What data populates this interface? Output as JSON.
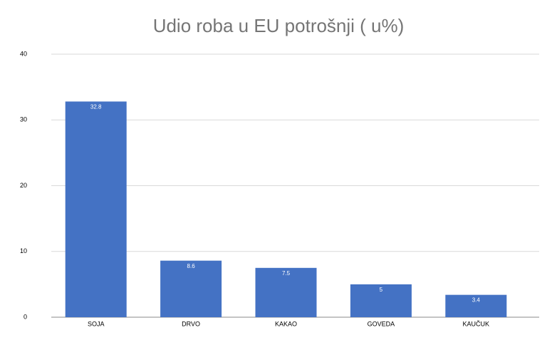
{
  "chart_data": {
    "type": "bar",
    "title": "Udio roba u EU potrošnji ( u%)",
    "categories": [
      "SOJA",
      "DRVO",
      "KAKAO",
      "GOVEDA",
      "KAUČUK"
    ],
    "values": [
      32.8,
      8.6,
      7.5,
      5,
      3.4
    ],
    "color": "#4472c4",
    "ylim": [
      0,
      40
    ],
    "yticks": [
      0,
      10,
      20,
      30,
      40
    ],
    "grid": true
  }
}
